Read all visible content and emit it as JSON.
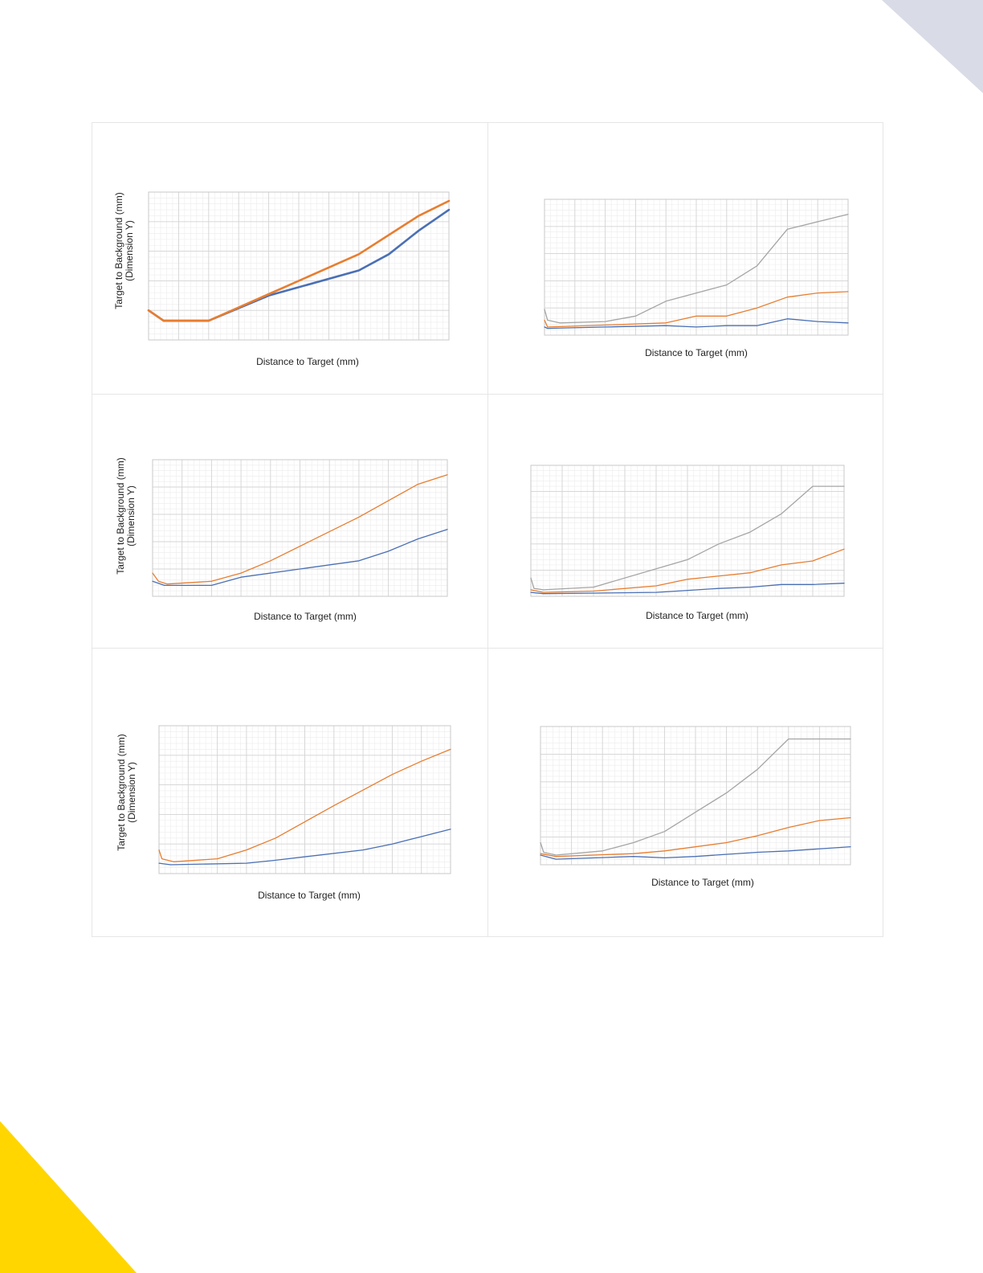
{
  "colors": {
    "series_blue": "#4a6fb5",
    "series_orange": "#e87d2f",
    "series_gray": "#a5a5a5",
    "grid_major": "#d4d4d4",
    "grid_minor": "#ececec",
    "corner_top_right": "#d9dbe6",
    "corner_bottom_left": "#ffd600"
  },
  "chart_data": [
    {
      "id": "a",
      "type": "line",
      "xlabel": "Distance to Target (mm)",
      "ylabel": "Target to Background (mm)",
      "ylabel2": "(Dimension Y)",
      "xlim": [
        0,
        100
      ],
      "ylim": [
        0,
        100
      ],
      "grid": true,
      "series": [
        {
          "color": "series_blue",
          "x": [
            0,
            5,
            20,
            40,
            70,
            80,
            90,
            100
          ],
          "y": [
            20,
            13,
            13,
            30,
            47,
            58,
            74,
            88
          ]
        },
        {
          "color": "series_orange",
          "x": [
            0,
            5,
            20,
            40,
            70,
            90,
            100
          ],
          "y": [
            20,
            13,
            13,
            31,
            58,
            84,
            94
          ]
        }
      ]
    },
    {
      "id": "b",
      "type": "line",
      "xlabel": "Distance to Target (mm)",
      "xlim": [
        0,
        100
      ],
      "ylim": [
        0,
        100
      ],
      "grid": true,
      "series": [
        {
          "color": "series_blue",
          "x": [
            0,
            1,
            20,
            40,
            50,
            60,
            70,
            80,
            90,
            100
          ],
          "y": [
            6,
            5,
            6,
            7,
            6,
            7,
            7,
            12,
            10,
            9
          ]
        },
        {
          "color": "series_orange",
          "x": [
            0,
            1,
            40,
            50,
            60,
            70,
            80,
            90,
            100
          ],
          "y": [
            11,
            6,
            9,
            14,
            14,
            20,
            28,
            31,
            32
          ]
        },
        {
          "color": "series_gray",
          "x": [
            0,
            1,
            5,
            20,
            30,
            40,
            60,
            70,
            80,
            100
          ],
          "y": [
            19,
            11,
            9,
            10,
            14,
            25,
            37,
            51,
            78,
            89
          ]
        }
      ]
    },
    {
      "id": "c",
      "type": "line",
      "xlabel": "Distance to Target (mm)",
      "ylabel": "Target to Background (mm)",
      "ylabel2": "(Dimension Y)",
      "xlim": [
        0,
        100
      ],
      "ylim": [
        0,
        100
      ],
      "grid": true,
      "series": [
        {
          "color": "series_blue",
          "x": [
            0,
            4,
            20,
            30,
            50,
            70,
            80,
            90,
            100
          ],
          "y": [
            11,
            8,
            8,
            14,
            20,
            26,
            33,
            42,
            49
          ]
        },
        {
          "color": "series_orange",
          "x": [
            0,
            2,
            5,
            20,
            30,
            40,
            70,
            90,
            100
          ],
          "y": [
            17,
            11,
            9,
            11,
            17,
            26,
            58,
            82,
            89
          ]
        }
      ]
    },
    {
      "id": "d",
      "type": "line",
      "xlabel": "Distance to Target (mm)",
      "xlim": [
        0,
        100
      ],
      "ylim": [
        0,
        100
      ],
      "grid": true,
      "series": [
        {
          "color": "series_blue",
          "x": [
            0,
            4,
            40,
            60,
            70,
            80,
            90,
            100
          ],
          "y": [
            3,
            2,
            3,
            6,
            7,
            9,
            9,
            10
          ]
        },
        {
          "color": "series_orange",
          "x": [
            0,
            4,
            20,
            40,
            50,
            70,
            80,
            90,
            100
          ],
          "y": [
            5,
            3,
            4,
            8,
            13,
            18,
            24,
            27,
            36
          ]
        },
        {
          "color": "series_gray",
          "x": [
            0,
            1,
            4,
            20,
            40,
            50,
            60,
            70,
            80,
            90,
            100
          ],
          "y": [
            14,
            6,
            5,
            7,
            21,
            28,
            40,
            49,
            63,
            84,
            84
          ]
        }
      ]
    },
    {
      "id": "e",
      "type": "line",
      "xlabel": "Distance to Target (mm)",
      "ylabel": "Target to Background (mm)",
      "ylabel2": "(Dimension Y)",
      "xlim": [
        0,
        100
      ],
      "ylim": [
        0,
        100
      ],
      "grid": true,
      "series": [
        {
          "color": "series_blue",
          "x": [
            0,
            4,
            30,
            40,
            70,
            80,
            90,
            100
          ],
          "y": [
            7,
            6,
            7,
            9,
            16,
            20,
            25,
            30
          ]
        },
        {
          "color": "series_orange",
          "x": [
            0,
            1,
            5,
            20,
            30,
            40,
            60,
            80,
            90,
            100
          ],
          "y": [
            16,
            10,
            8,
            10,
            16,
            24,
            46,
            67,
            76,
            84
          ]
        }
      ]
    },
    {
      "id": "f",
      "type": "line",
      "xlabel": "Distance to Target (mm)",
      "xlim": [
        0,
        100
      ],
      "ylim": [
        0,
        100
      ],
      "grid": true,
      "series": [
        {
          "color": "series_blue",
          "x": [
            0,
            5,
            30,
            40,
            50,
            70,
            80,
            100
          ],
          "y": [
            7,
            4,
            6,
            5,
            6,
            9,
            10,
            13
          ]
        },
        {
          "color": "series_orange",
          "x": [
            0,
            5,
            30,
            40,
            60,
            70,
            80,
            90,
            100
          ],
          "y": [
            8,
            6,
            8,
            10,
            16,
            21,
            27,
            32,
            34
          ]
        },
        {
          "color": "series_gray",
          "x": [
            0,
            1,
            5,
            20,
            30,
            40,
            50,
            60,
            70,
            80,
            100
          ],
          "y": [
            16,
            9,
            7,
            10,
            16,
            24,
            38,
            52,
            69,
            91,
            91
          ]
        }
      ]
    }
  ]
}
